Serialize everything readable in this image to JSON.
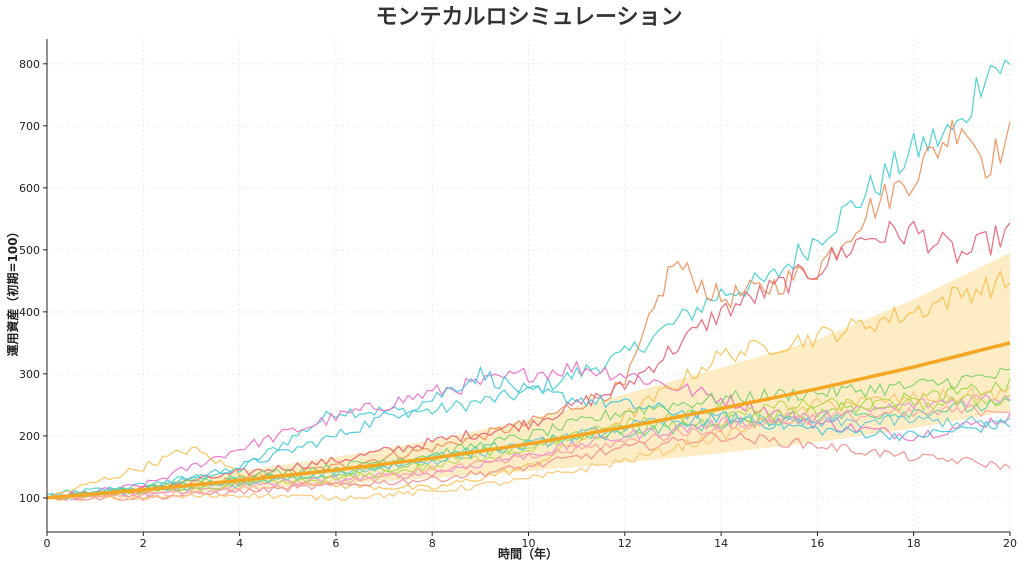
{
  "chart_data": {
    "type": "line",
    "title": "モンテカルロシミュレーション",
    "xlabel": "時間（年）",
    "ylabel": "運用資産（初期=100）",
    "xlim": [
      0,
      20
    ],
    "ylim": [
      45,
      840
    ],
    "xticks": [
      "0",
      "2",
      "4",
      "6",
      "8",
      "10",
      "12",
      "14",
      "16",
      "18",
      "20"
    ],
    "yticks": [
      "100",
      "200",
      "300",
      "400",
      "500",
      "600",
      "700",
      "800"
    ],
    "grid": true,
    "legend": "none",
    "mean_color": "#f5a623",
    "band_color": "#fde7b5",
    "mean": {
      "x": [
        0,
        2,
        4,
        6,
        8,
        10,
        12,
        14,
        16,
        18,
        20
      ],
      "y": [
        100,
        113,
        128,
        145,
        164,
        187,
        214,
        244,
        276,
        311,
        350
      ]
    },
    "band": {
      "x": [
        0,
        2,
        4,
        6,
        8,
        10,
        12,
        14,
        16,
        18,
        20
      ],
      "lower": [
        100,
        106,
        113,
        122,
        132,
        143,
        157,
        172,
        190,
        212,
        240
      ],
      "upper": [
        100,
        120,
        143,
        166,
        193,
        226,
        267,
        310,
        355,
        420,
        495
      ]
    },
    "series": [
      {
        "color": "#3ccfcf",
        "x": [
          0,
          2,
          4,
          6,
          8,
          10,
          12,
          14,
          15,
          16,
          17,
          18,
          19,
          19.5,
          20
        ],
        "y": [
          105,
          120,
          145,
          240,
          240,
          270,
          330,
          430,
          450,
          520,
          590,
          660,
          700,
          800,
          790
        ]
      },
      {
        "color": "#f28b50",
        "x": [
          0,
          2,
          4,
          6,
          8,
          10,
          12,
          13,
          14,
          15,
          16,
          17,
          18,
          19,
          19.5,
          20
        ],
        "y": [
          100,
          110,
          130,
          150,
          180,
          220,
          280,
          480,
          420,
          440,
          470,
          560,
          620,
          710,
          640,
          680
        ]
      },
      {
        "color": "#ee5a70",
        "x": [
          0,
          2,
          4,
          6,
          8,
          10,
          12,
          14,
          16,
          17,
          18,
          19,
          20
        ],
        "y": [
          100,
          115,
          140,
          160,
          190,
          220,
          280,
          400,
          470,
          520,
          530,
          490,
          530
        ]
      },
      {
        "color": "#f06cc8",
        "x": [
          0,
          2,
          4,
          6,
          8,
          10,
          11,
          12,
          14,
          16,
          18,
          20
        ],
        "y": [
          100,
          120,
          180,
          230,
          270,
          300,
          310,
          300,
          260,
          220,
          200,
          230
        ]
      },
      {
        "color": "#40c8e0",
        "x": [
          0,
          2,
          4,
          6,
          8,
          9,
          10,
          12,
          14,
          16,
          18,
          20
        ],
        "y": [
          100,
          115,
          150,
          200,
          260,
          300,
          270,
          250,
          230,
          210,
          200,
          220
        ]
      },
      {
        "color": "#fbbf4d",
        "x": [
          0,
          2,
          3,
          4,
          6,
          8,
          10,
          12,
          14,
          16,
          17,
          18,
          19,
          20
        ],
        "y": [
          100,
          150,
          180,
          140,
          120,
          115,
          150,
          230,
          330,
          360,
          380,
          400,
          430,
          450
        ]
      },
      {
        "color": "#7ad36b",
        "x": [
          0,
          2,
          4,
          6,
          8,
          10,
          12,
          14,
          16,
          18,
          20
        ],
        "y": [
          100,
          115,
          135,
          150,
          170,
          200,
          240,
          260,
          270,
          280,
          300
        ]
      },
      {
        "color": "#9ad94a",
        "x": [
          0,
          2,
          4,
          6,
          8,
          10,
          12,
          14,
          16,
          18,
          20
        ],
        "y": [
          100,
          110,
          125,
          135,
          160,
          185,
          210,
          225,
          240,
          260,
          280
        ]
      },
      {
        "color": "#58d4a4",
        "x": [
          0,
          2,
          4,
          6,
          8,
          10,
          12,
          14,
          16,
          18,
          20
        ],
        "y": [
          100,
          115,
          130,
          140,
          165,
          190,
          205,
          220,
          230,
          240,
          250
        ]
      },
      {
        "color": "#e88fd8",
        "x": [
          0,
          2,
          4,
          6,
          8,
          10,
          12,
          14,
          16,
          18,
          20
        ],
        "y": [
          100,
          105,
          120,
          130,
          140,
          170,
          200,
          220,
          230,
          250,
          265
        ]
      },
      {
        "color": "#f78a8a",
        "x": [
          0,
          2,
          4,
          6,
          8,
          10,
          12,
          14,
          16,
          18,
          19,
          20
        ],
        "y": [
          100,
          100,
          110,
          120,
          130,
          150,
          180,
          200,
          185,
          165,
          160,
          150
        ]
      },
      {
        "color": "#fdc56b",
        "x": [
          0,
          2,
          4,
          6,
          8,
          10,
          12,
          14,
          16,
          18,
          20
        ],
        "y": [
          100,
          100,
          105,
          100,
          110,
          130,
          160,
          200,
          250,
          260,
          270
        ]
      },
      {
        "color": "#b6d84e",
        "x": [
          0,
          2,
          4,
          6,
          8,
          10,
          12,
          14,
          16,
          18,
          20
        ],
        "y": [
          100,
          110,
          120,
          130,
          150,
          180,
          220,
          240,
          250,
          250,
          260
        ]
      },
      {
        "color": "#6cc8d8",
        "x": [
          0,
          2,
          4,
          6,
          8,
          10,
          12,
          14,
          16,
          18,
          20
        ],
        "y": [
          100,
          112,
          122,
          140,
          160,
          185,
          215,
          230,
          220,
          225,
          220
        ]
      },
      {
        "color": "#ff9f9f",
        "x": [
          0,
          2,
          4,
          6,
          8,
          10,
          12,
          14,
          16,
          18,
          20
        ],
        "y": [
          100,
          105,
          115,
          125,
          145,
          165,
          190,
          215,
          230,
          235,
          245
        ]
      }
    ]
  }
}
